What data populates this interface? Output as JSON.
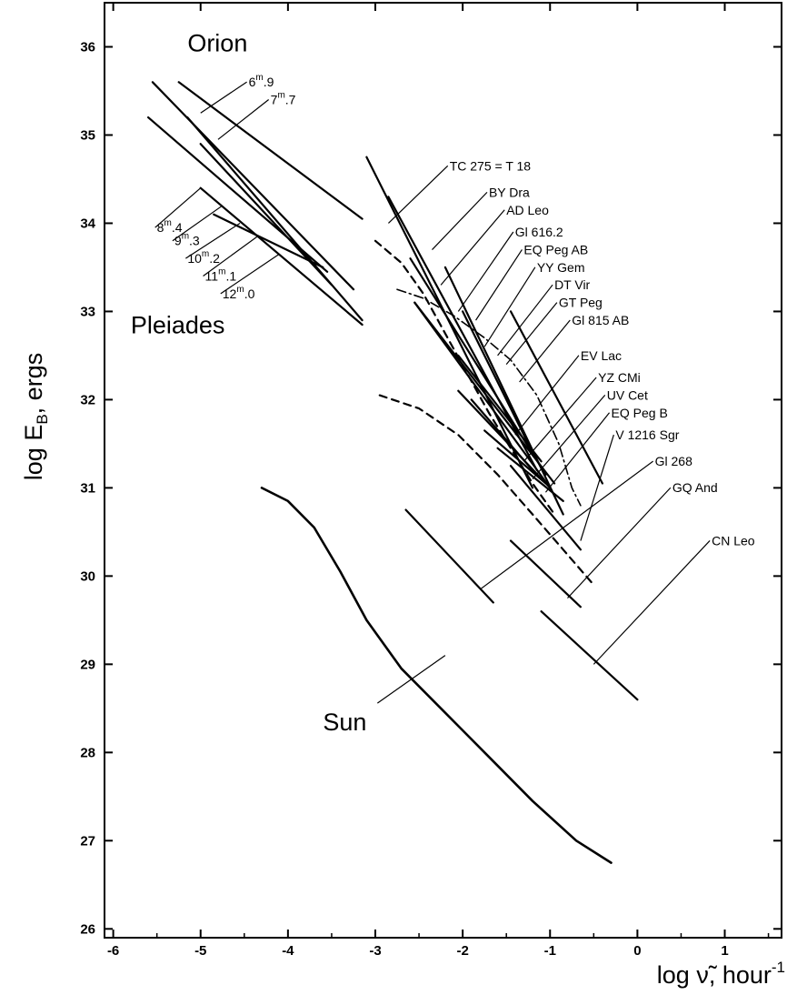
{
  "chart_data": {
    "type": "line",
    "title": "",
    "xlabel": "log ν̃, hour",
    "xlabel_sup": "-1",
    "ylabel": "log E",
    "ylabel_sub": "B",
    "ylabel_suffix": ", ergs",
    "xlim": [
      -6.1,
      1.65
    ],
    "ylim": [
      25.9,
      36.5
    ],
    "xticks": [
      -6,
      -5,
      -4,
      -3,
      -2,
      -1,
      0,
      1
    ],
    "xtick_labels": [
      "-6",
      "-5",
      "-4",
      "-3",
      "-2",
      "-1",
      "0",
      "1"
    ],
    "yticks": [
      26,
      27,
      28,
      29,
      30,
      31,
      32,
      33,
      34,
      35,
      36
    ],
    "ytick_labels": [
      "26",
      "27",
      "28",
      "29",
      "30",
      "31",
      "32",
      "33",
      "34",
      "35",
      "36"
    ],
    "grid": false,
    "group_labels": [
      {
        "text": "Orion",
        "x": -5.15,
        "y": 35.95
      },
      {
        "text": "Pleiades",
        "x": -5.8,
        "y": 32.75
      },
      {
        "text": "Sun",
        "x": -3.6,
        "y": 28.25
      }
    ],
    "series": [
      {
        "name": "6.9",
        "label_parts": [
          "6",
          "m",
          ".9"
        ],
        "style": "solid",
        "points": [
          [
            -5.25,
            35.6
          ],
          [
            -3.15,
            34.05
          ]
        ],
        "label_at": [
          -4.45,
          35.55
        ],
        "pointer_to": [
          -5.0,
          35.25
        ]
      },
      {
        "name": "7.7",
        "label_parts": [
          "7",
          "m",
          ".7"
        ],
        "style": "solid",
        "points": [
          [
            -5.55,
            35.6
          ],
          [
            -3.25,
            33.25
          ]
        ],
        "label_at": [
          -4.2,
          35.35
        ],
        "pointer_to": [
          -4.8,
          34.95
        ]
      },
      {
        "name": "8.4",
        "label_parts": [
          "8",
          "m",
          ".4"
        ],
        "style": "solid",
        "points": [
          [
            -5.6,
            35.2
          ],
          [
            -3.55,
            33.45
          ]
        ],
        "label_at": [
          -5.5,
          33.9
        ],
        "pointer_to": [
          -5.0,
          34.4
        ]
      },
      {
        "name": "9.3",
        "label_parts": [
          "9",
          "m",
          ".3"
        ],
        "style": "solid",
        "points": [
          [
            -5.15,
            35.2
          ],
          [
            -3.15,
            32.9
          ]
        ],
        "label_at": [
          -5.3,
          33.75
        ],
        "pointer_to": [
          -4.75,
          34.2
        ]
      },
      {
        "name": "10.2",
        "label_parts": [
          "10",
          "m",
          ".2"
        ],
        "style": "solid",
        "points": [
          [
            -5.0,
            34.9
          ],
          [
            -3.5,
            33.3
          ]
        ],
        "label_at": [
          -5.15,
          33.55
        ],
        "pointer_to": [
          -4.55,
          34.0
        ]
      },
      {
        "name": "11.1",
        "label_parts": [
          "11",
          "m",
          ".1"
        ],
        "style": "solid",
        "points": [
          [
            -5.0,
            34.4
          ],
          [
            -3.15,
            32.85
          ]
        ],
        "label_at": [
          -4.95,
          33.35
        ],
        "pointer_to": [
          -4.35,
          33.85
        ]
      },
      {
        "name": "12.0",
        "label_parts": [
          "12",
          "m",
          ".0"
        ],
        "style": "solid",
        "points": [
          [
            -4.85,
            34.1
          ],
          [
            -3.6,
            33.5
          ]
        ],
        "label_at": [
          -4.75,
          33.15
        ],
        "pointer_to": [
          -4.1,
          33.65
        ]
      },
      {
        "name": "TC 275 = T 18",
        "style": "solid",
        "points": [
          [
            -3.1,
            34.75
          ],
          [
            -1.2,
            31.0
          ]
        ],
        "label_at": [
          -2.15,
          34.6
        ],
        "pointer_to": [
          -2.85,
          34.0
        ]
      },
      {
        "name": "BY Dra",
        "style": "solid",
        "points": [
          [
            -2.85,
            34.3
          ],
          [
            -1.15,
            31.2
          ]
        ],
        "label_at": [
          -1.7,
          34.3
        ],
        "pointer_to": [
          -2.35,
          33.7
        ]
      },
      {
        "name": "AD Leo",
        "style": "solid",
        "points": [
          [
            -2.6,
            33.6
          ],
          [
            -1.05,
            31.15
          ]
        ],
        "label_at": [
          -1.5,
          34.1
        ],
        "pointer_to": [
          -2.25,
          33.3
        ]
      },
      {
        "name": "Gl 616.2",
        "style": "solid",
        "points": [
          [
            -2.55,
            33.1
          ],
          [
            -1.0,
            31.0
          ]
        ],
        "label_at": [
          -1.4,
          33.85
        ],
        "pointer_to": [
          -2.05,
          33.0
        ]
      },
      {
        "name": "EQ Peg AB",
        "style": "solid",
        "points": [
          [
            -2.2,
            33.5
          ],
          [
            -0.85,
            30.7
          ]
        ],
        "label_at": [
          -1.3,
          33.65
        ],
        "pointer_to": [
          -1.85,
          32.9
        ]
      },
      {
        "name": "YY Gem",
        "style": "solid",
        "points": [
          [
            -2.0,
            33.0
          ],
          [
            -1.25,
            31.5
          ]
        ],
        "label_at": [
          -1.15,
          33.45
        ],
        "pointer_to": [
          -1.75,
          32.6
        ]
      },
      {
        "name": "DT Vir",
        "style": "solid",
        "points": [
          [
            -2.55,
            33.1
          ],
          [
            -0.95,
            31.05
          ]
        ],
        "label_at": [
          -0.95,
          33.25
        ],
        "pointer_to": [
          -1.6,
          32.5
        ]
      },
      {
        "name": "GT Peg",
        "style": "solid",
        "points": [
          [
            -2.05,
            32.5
          ],
          [
            -1.1,
            31.3
          ]
        ],
        "label_at": [
          -0.9,
          33.05
        ],
        "pointer_to": [
          -1.5,
          32.4
        ]
      },
      {
        "name": "Gl 815 AB",
        "style": "solid",
        "points": [
          [
            -1.45,
            33.0
          ],
          [
            -0.4,
            31.05
          ]
        ],
        "label_at": [
          -0.75,
          32.85
        ],
        "pointer_to": [
          -1.35,
          32.2
        ]
      },
      {
        "name": "EV Lac",
        "style": "solid",
        "points": [
          [
            -2.05,
            32.1
          ],
          [
            -1.0,
            31.0
          ]
        ],
        "label_at": [
          -0.65,
          32.45
        ],
        "pointer_to": [
          -1.4,
          31.6
        ]
      },
      {
        "name": "YZ CMi",
        "style": "solid",
        "points": [
          [
            -1.9,
            32.0
          ],
          [
            -1.2,
            31.2
          ]
        ],
        "label_at": [
          -0.45,
          32.2
        ],
        "pointer_to": [
          -1.3,
          31.3
        ]
      },
      {
        "name": "UV Cet",
        "style": "solid",
        "points": [
          [
            -1.75,
            31.65
          ],
          [
            -1.05,
            31.05
          ]
        ],
        "label_at": [
          -0.35,
          32.0
        ],
        "pointer_to": [
          -1.2,
          31.1
        ]
      },
      {
        "name": "EQ Peg B",
        "style": "solid",
        "points": [
          [
            -1.6,
            31.45
          ],
          [
            -0.85,
            30.85
          ]
        ],
        "label_at": [
          -0.3,
          31.8
        ],
        "pointer_to": [
          -1.05,
          30.95
        ]
      },
      {
        "name": "V 1216 Sgr",
        "style": "solid",
        "points": [
          [
            -1.45,
            31.25
          ],
          [
            -0.65,
            30.3
          ]
        ],
        "label_at": [
          -0.25,
          31.55
        ],
        "pointer_to": [
          -0.65,
          30.4
        ]
      },
      {
        "name": "Gl 268",
        "style": "solid",
        "points": [
          [
            -2.65,
            30.75
          ],
          [
            -1.65,
            29.7
          ]
        ],
        "label_at": [
          0.2,
          31.25
        ],
        "pointer_to": [
          -1.8,
          29.85
        ]
      },
      {
        "name": "GQ And",
        "style": "solid",
        "points": [
          [
            -1.45,
            30.4
          ],
          [
            -0.65,
            29.65
          ]
        ],
        "label_at": [
          0.4,
          30.95
        ],
        "pointer_to": [
          -0.8,
          29.75
        ]
      },
      {
        "name": "CN Leo",
        "style": "solid",
        "points": [
          [
            -1.1,
            29.6
          ],
          [
            0.0,
            28.6
          ]
        ],
        "label_at": [
          0.85,
          30.35
        ],
        "pointer_to": [
          -0.5,
          29.0
        ]
      },
      {
        "name": "Sun",
        "style": "solid",
        "points": [
          [
            -4.3,
            31.0
          ],
          [
            -4.0,
            30.85
          ],
          [
            -3.7,
            30.55
          ],
          [
            -3.4,
            30.05
          ],
          [
            -3.1,
            29.5
          ],
          [
            -2.7,
            28.95
          ],
          [
            -2.2,
            28.45
          ],
          [
            -1.7,
            27.95
          ],
          [
            -1.2,
            27.45
          ],
          [
            -0.7,
            27.0
          ],
          [
            -0.3,
            26.75
          ]
        ],
        "label_at": [
          -3.6,
          28.25
        ],
        "pointer_to": [
          -2.2,
          29.1
        ]
      },
      {
        "name": "",
        "style": "dashed",
        "points": [
          [
            -3.0,
            33.8
          ],
          [
            -2.7,
            33.55
          ],
          [
            -2.45,
            33.2
          ],
          [
            -2.2,
            32.75
          ],
          [
            -1.95,
            32.3
          ],
          [
            -1.7,
            31.85
          ],
          [
            -1.45,
            31.45
          ],
          [
            -1.2,
            31.05
          ],
          [
            -0.95,
            30.7
          ]
        ]
      },
      {
        "name": "",
        "style": "dashed",
        "points": [
          [
            -2.95,
            32.05
          ],
          [
            -2.5,
            31.9
          ],
          [
            -2.05,
            31.6
          ],
          [
            -1.6,
            31.15
          ],
          [
            -1.2,
            30.7
          ],
          [
            -0.85,
            30.3
          ],
          [
            -0.5,
            29.9
          ]
        ]
      },
      {
        "name": "",
        "style": "dashdot",
        "points": [
          [
            -2.75,
            33.25
          ],
          [
            -2.45,
            33.15
          ],
          [
            -2.1,
            32.95
          ],
          [
            -1.75,
            32.7
          ],
          [
            -1.45,
            32.45
          ],
          [
            -1.15,
            32.05
          ],
          [
            -0.9,
            31.5
          ],
          [
            -0.75,
            31.0
          ],
          [
            -0.65,
            30.8
          ]
        ]
      }
    ]
  }
}
